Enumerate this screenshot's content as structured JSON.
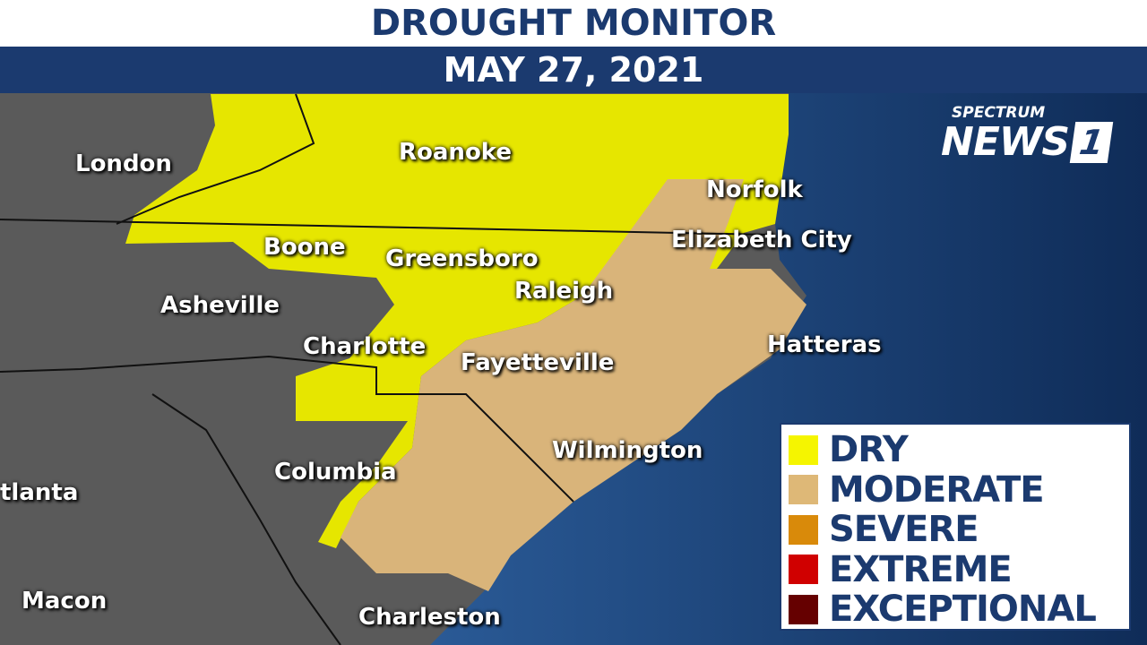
{
  "header": {
    "title": "DROUGHT MONITOR",
    "date": "MAY 27, 2021"
  },
  "logo": {
    "top": "SPECTRUM",
    "main": "NEWS",
    "number": "1"
  },
  "colors": {
    "navy": "#1b3a6f",
    "land": "#5a5a5a",
    "ocean": "#1e4a82"
  },
  "cities": [
    {
      "name": "London"
    },
    {
      "name": "Roanoke"
    },
    {
      "name": "Norfolk"
    },
    {
      "name": "Boone"
    },
    {
      "name": "Greensboro"
    },
    {
      "name": "Elizabeth City"
    },
    {
      "name": "Raleigh"
    },
    {
      "name": "Asheville"
    },
    {
      "name": "Charlotte"
    },
    {
      "name": "Fayetteville"
    },
    {
      "name": "Hatteras"
    },
    {
      "name": "Wilmington"
    },
    {
      "name": "Columbia"
    },
    {
      "name": "tlanta"
    },
    {
      "name": "Macon"
    },
    {
      "name": "Charleston"
    }
  ],
  "legend": [
    {
      "label": "DRY",
      "color": "#f5f500"
    },
    {
      "label": "MODERATE",
      "color": "#deb877"
    },
    {
      "label": "SEVERE",
      "color": "#d98a0a"
    },
    {
      "label": "EXTREME",
      "color": "#d00000"
    },
    {
      "label": "EXCEPTIONAL",
      "color": "#650000"
    }
  ]
}
